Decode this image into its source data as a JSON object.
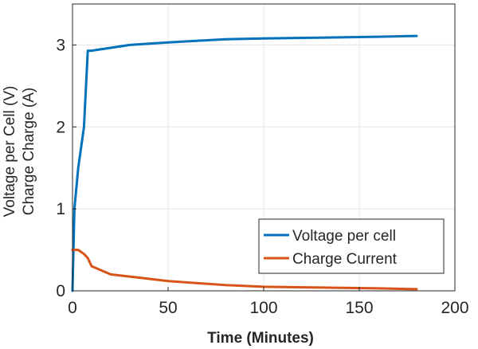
{
  "chart_data": {
    "type": "line",
    "title": "",
    "xlabel": "Time (Minutes)",
    "ylabel_lines": [
      "Voltage per Cell (V)",
      "Charge Charge (A)"
    ],
    "xlim": [
      0,
      200
    ],
    "ylim": [
      0,
      3.5
    ],
    "xticks": [
      0,
      50,
      100,
      150,
      200
    ],
    "yticks": [
      0,
      1,
      2,
      3
    ],
    "grid": true,
    "legend_position": "bottom-right",
    "series": [
      {
        "name": "Voltage per cell",
        "color": "#0072bd",
        "x": [
          0,
          1,
          3,
          6,
          8,
          10,
          30,
          50,
          80,
          100,
          130,
          160,
          180
        ],
        "y": [
          0,
          1.0,
          1.5,
          2.0,
          2.93,
          2.93,
          3.0,
          3.03,
          3.07,
          3.08,
          3.09,
          3.1,
          3.11
        ]
      },
      {
        "name": "Charge Current",
        "color": "#d95319",
        "x": [
          0,
          3,
          6,
          8,
          10,
          20,
          35,
          50,
          80,
          100,
          130,
          160,
          180
        ],
        "y": [
          0.5,
          0.5,
          0.45,
          0.4,
          0.3,
          0.2,
          0.16,
          0.12,
          0.07,
          0.05,
          0.04,
          0.03,
          0.02
        ]
      }
    ]
  }
}
